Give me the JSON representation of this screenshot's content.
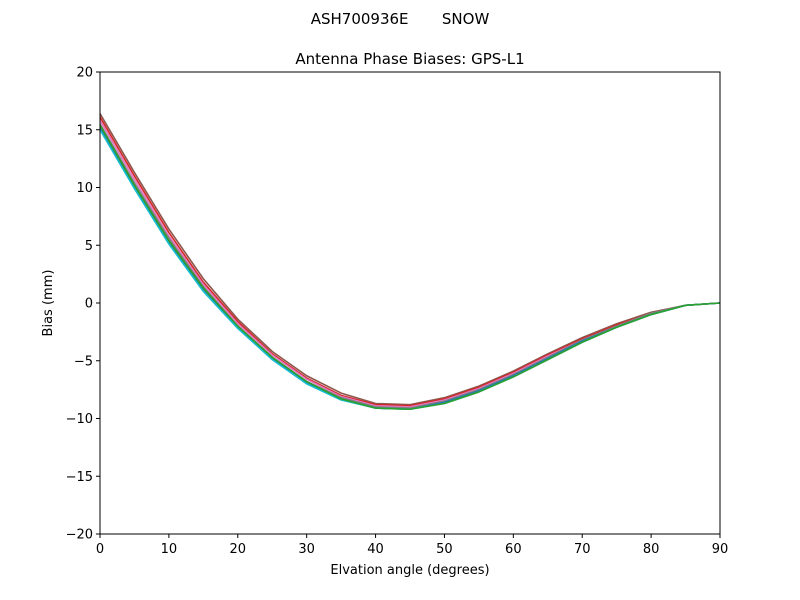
{
  "suptitle": "ASH700936E       SNOW",
  "chart_data": {
    "type": "line",
    "title": "Antenna Phase Biases: GPS-L1",
    "xlabel": "Elvation angle (degrees)",
    "ylabel": "Bias (mm)",
    "xlim": [
      0,
      90
    ],
    "ylim": [
      -20,
      20
    ],
    "xticks": [
      0,
      10,
      20,
      30,
      40,
      50,
      60,
      70,
      80,
      90
    ],
    "yticks": [
      -20,
      -15,
      -10,
      -5,
      0,
      5,
      10,
      15,
      20
    ],
    "xtick_labels": [
      "0",
      "10",
      "20",
      "30",
      "40",
      "50",
      "60",
      "70",
      "80",
      "90"
    ],
    "ytick_labels": [
      "−20",
      "−15",
      "−10",
      "−5",
      "0",
      "5",
      "10",
      "15",
      "20"
    ],
    "grid": false,
    "legend": "none",
    "x": [
      0,
      5,
      10,
      15,
      20,
      25,
      30,
      35,
      40,
      45,
      50,
      55,
      60,
      65,
      70,
      75,
      80,
      85,
      90
    ],
    "series": [
      {
        "color": "#8c564b",
        "values": [
          16.4,
          11.3,
          6.4,
          2.1,
          -1.4,
          -4.2,
          -6.3,
          -7.8,
          -8.7,
          -8.8,
          -8.2,
          -7.2,
          -5.9,
          -4.4,
          -3.0,
          -1.8,
          -0.8,
          -0.2,
          0.0
        ]
      },
      {
        "color": "#d62728",
        "values": [
          16.1,
          11.0,
          6.1,
          1.8,
          -1.6,
          -4.4,
          -6.5,
          -8.0,
          -8.8,
          -8.9,
          -8.3,
          -7.3,
          -6.0,
          -4.5,
          -3.1,
          -1.9,
          -0.9,
          -0.2,
          0.0
        ]
      },
      {
        "color": "#e377c2",
        "values": [
          15.8,
          10.7,
          5.8,
          1.6,
          -1.8,
          -4.5,
          -6.6,
          -8.1,
          -8.9,
          -9.0,
          -8.4,
          -7.4,
          -6.1,
          -4.6,
          -3.2,
          -2.0,
          -0.9,
          -0.2,
          0.0
        ]
      },
      {
        "color": "#7f7f7f",
        "values": [
          15.5,
          10.4,
          5.6,
          1.4,
          -2.0,
          -4.7,
          -6.8,
          -8.2,
          -9.0,
          -9.1,
          -8.5,
          -7.5,
          -6.2,
          -4.7,
          -3.2,
          -2.0,
          -0.9,
          -0.2,
          0.0
        ]
      },
      {
        "color": "#1f77b4",
        "values": [
          15.2,
          10.1,
          5.3,
          1.2,
          -2.1,
          -4.8,
          -6.9,
          -8.3,
          -9.1,
          -9.2,
          -8.6,
          -7.6,
          -6.3,
          -4.8,
          -3.3,
          -2.1,
          -1.0,
          -0.2,
          0.0
        ]
      },
      {
        "color": "#17becf",
        "values": [
          15.0,
          9.9,
          5.1,
          1.0,
          -2.2,
          -4.9,
          -7.0,
          -8.4,
          -9.1,
          -9.2,
          -8.7,
          -7.7,
          -6.4,
          -4.9,
          -3.4,
          -2.1,
          -1.0,
          -0.2,
          0.0
        ]
      },
      {
        "color": "#2ca02c",
        "values": [
          15.4,
          10.2,
          5.4,
          1.3,
          -2.0,
          -4.7,
          -6.8,
          -8.3,
          -9.1,
          -9.2,
          -8.7,
          -7.7,
          -6.4,
          -4.9,
          -3.4,
          -2.1,
          -1.0,
          -0.2,
          0.0
        ]
      }
    ]
  }
}
